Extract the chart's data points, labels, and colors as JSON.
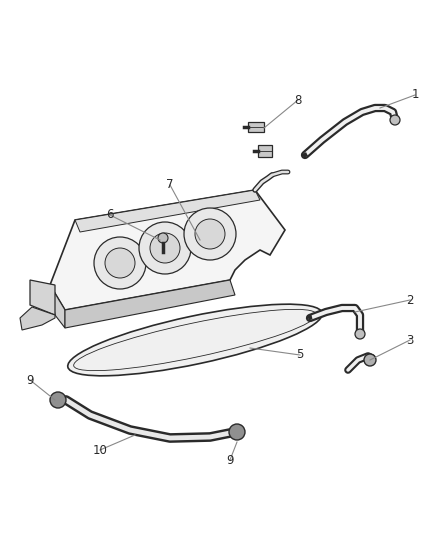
{
  "bg_color": "#ffffff",
  "fig_width": 4.38,
  "fig_height": 5.33,
  "dpi": 100,
  "line_color": "#2a2a2a",
  "label_color": "#2a2a2a",
  "leader_color": "#888888",
  "label_fontsize": 8.5
}
